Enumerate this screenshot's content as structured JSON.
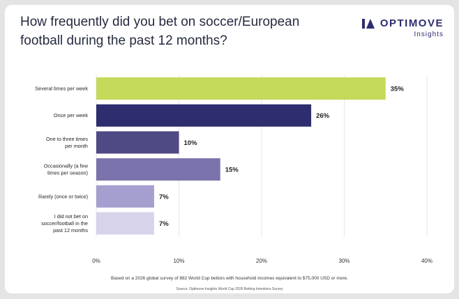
{
  "header": {
    "title_line1": "How frequently did you bet on soccer/European",
    "title_line2": "football during the past 12 months?",
    "brand": "OPTIMOVE",
    "brand_sub": "Insights"
  },
  "footer": {
    "note": "Based on a 2026 global survey of 882 World Cup bettors with household incomes equivalent to $75,000 USD or more.",
    "source": "Source: Optimove Insights World Cup 2026 Betting Intentions Survey"
  },
  "colors": {
    "brand": "#2e2d6e",
    "bars": [
      "#c5d95a",
      "#2e2d6e",
      "#4f4a84",
      "#7b73ac",
      "#a59fcf",
      "#d7d3ea"
    ]
  },
  "chart_data": {
    "type": "bar",
    "orientation": "horizontal",
    "categories": [
      [
        "Several times per week"
      ],
      [
        "Once per week"
      ],
      [
        "One to three times",
        "per month"
      ],
      [
        "Occasionally (a few",
        "times per season)"
      ],
      [
        "Rarely (once or twice)"
      ],
      [
        "I did not bet on",
        "soccer/football in the",
        "past 12 months"
      ]
    ],
    "values": [
      35,
      26,
      10,
      15,
      7,
      7
    ],
    "value_labels": [
      "35%",
      "26%",
      "10%",
      "15%",
      "7%",
      "7%"
    ],
    "x_ticks": [
      0,
      10,
      20,
      30,
      40
    ],
    "x_tick_labels": [
      "0%",
      "10%",
      "20%",
      "30%",
      "40%"
    ],
    "xlim": [
      0,
      40
    ],
    "grid": true
  }
}
